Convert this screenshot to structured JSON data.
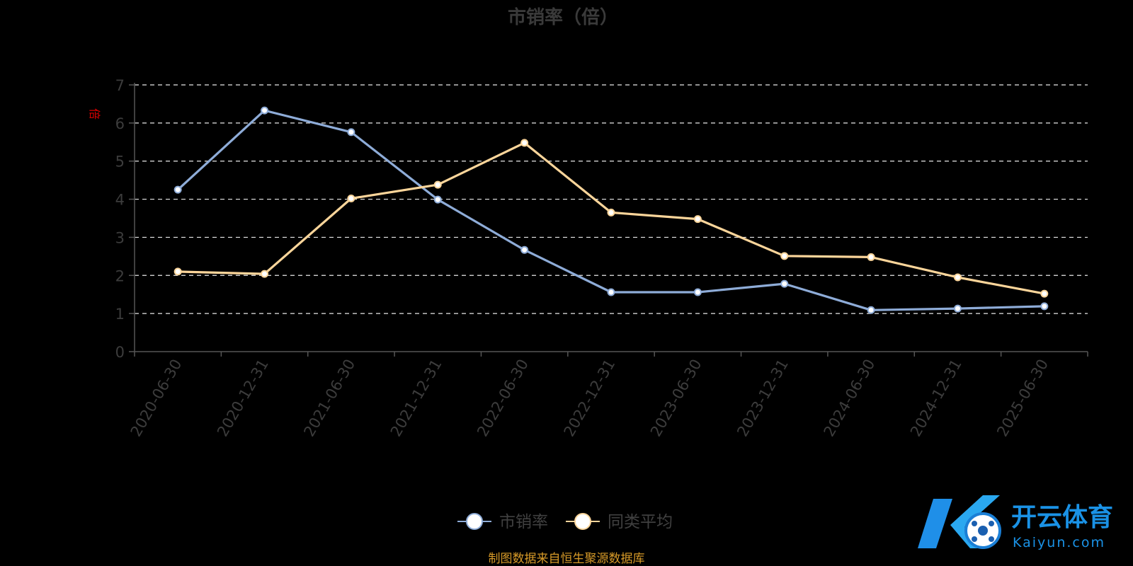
{
  "chart_data": {
    "type": "line",
    "title": "市销率（倍）",
    "ylabel": "倍",
    "ylim": [
      0,
      7
    ],
    "yticks": [
      0,
      1,
      2,
      3,
      4,
      5,
      6,
      7
    ],
    "grid": true,
    "legend_position": "bottom",
    "categories": [
      "2020-06-30",
      "2020-12-31",
      "2021-06-30",
      "2021-12-31",
      "2022-06-30",
      "2022-12-31",
      "2023-06-30",
      "2023-12-31",
      "2024-06-30",
      "2024-12-31",
      "2025-06-30"
    ],
    "series": [
      {
        "name": "市销率",
        "color": "#8eacd8",
        "values": [
          4.25,
          6.33,
          5.76,
          3.99,
          2.67,
          1.56,
          1.56,
          1.78,
          1.09,
          1.13,
          1.19
        ]
      },
      {
        "name": "同类平均",
        "color": "#fbd59a",
        "values": [
          2.1,
          2.04,
          4.02,
          4.38,
          5.48,
          3.65,
          3.48,
          2.51,
          2.48,
          1.95,
          1.52
        ]
      }
    ]
  },
  "source_note": "制图数据来自恒生聚源数据库",
  "watermark": {
    "cn": "开云体育",
    "en": "Kaiyun.com",
    "logo_letter": "K"
  }
}
